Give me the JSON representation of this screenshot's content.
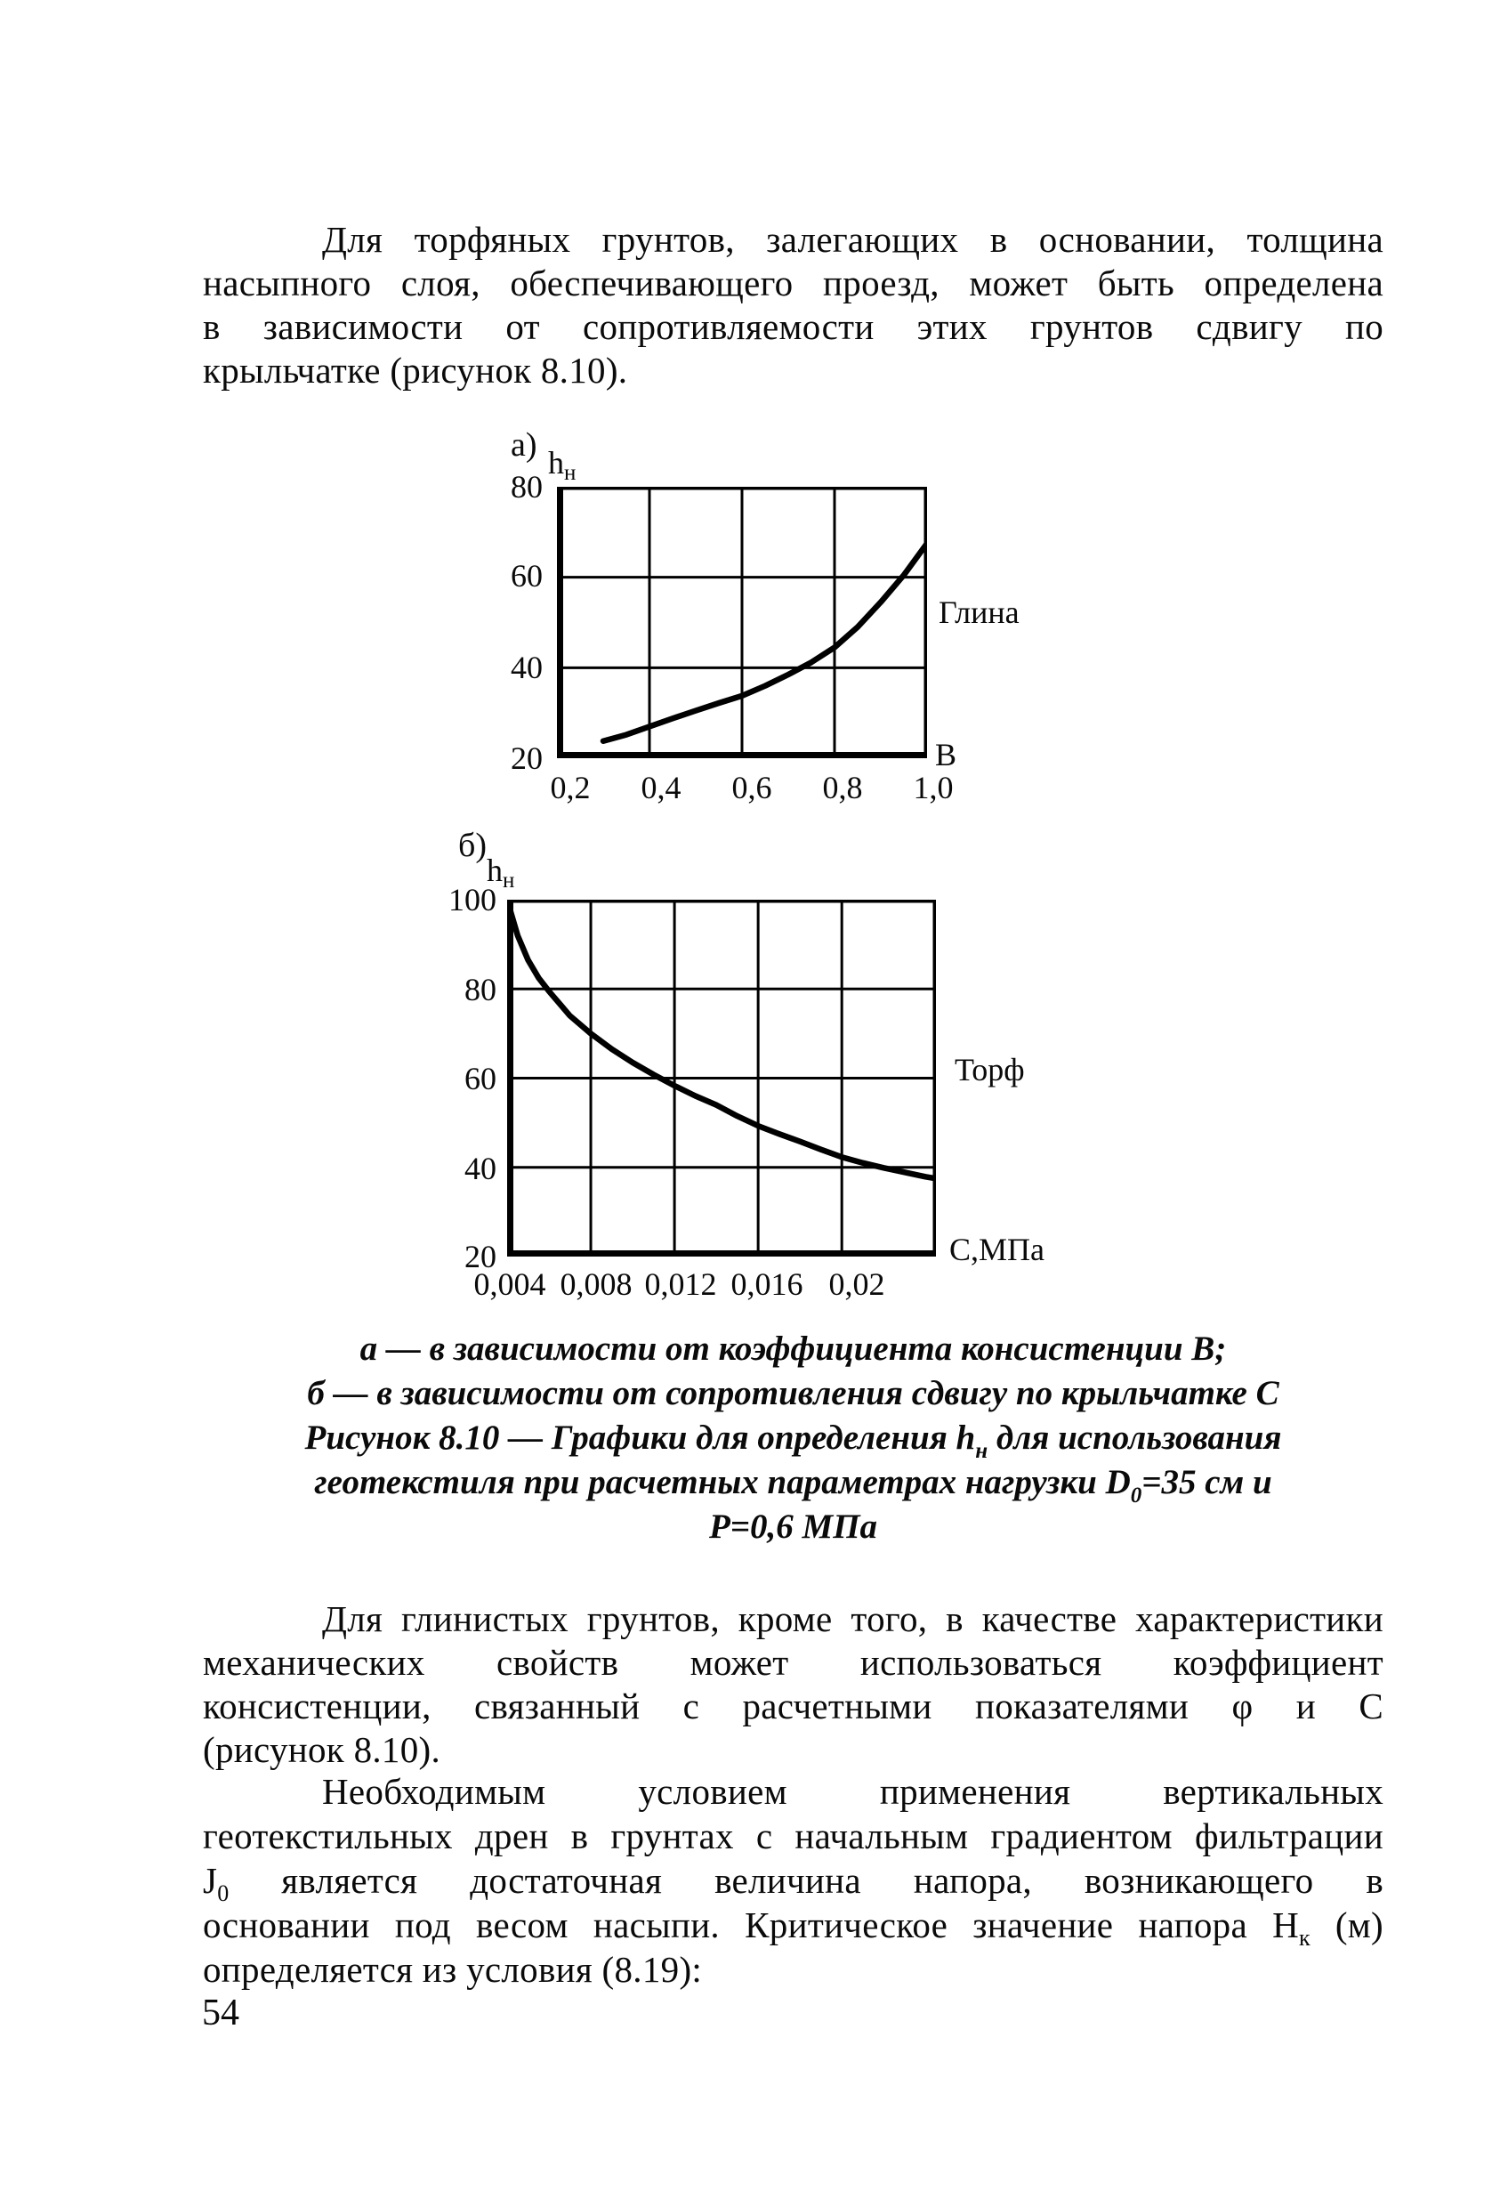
{
  "paragraphs": {
    "p1": {
      "line1": "Для торфяных грунтов, залегающих в основании, толщина",
      "line2": "насыпного слоя, обеспечивающего проезд, может быть определена",
      "line3": "в зависимости от сопротивляемости этих грунтов сдвигу по",
      "line4": "крыльчатке (рисунок 8.10)."
    },
    "p2": {
      "line1": "Для глинистых грунтов, кроме того, в качестве характеристики",
      "line2": "механических свойств может использоваться коэффициент",
      "line3": "консистенции, связанный с расчетными показателями φ и С",
      "line4": "(рисунок 8.10)."
    },
    "p3": {
      "line1": "Необходимым условием применения вертикальных",
      "line2": "геотекстильных дрен в грунтах с начальным градиентом фильтрации",
      "line3_pre": "J",
      "line3_sub": "0",
      "line3_post": " является достаточная величина напора, возникающего в",
      "line4_pre": "основании под весом насыпи. Критическое значение напора Н",
      "line4_sub": "к",
      "line4_post": " (м)",
      "line5": "определяется из условия (8.19):"
    }
  },
  "figure": {
    "chart_a": {
      "panel_label": "а)",
      "y_symbol": "h",
      "y_symbol_sub": "н",
      "x_axis_label": "В",
      "curve_label": "Глина",
      "y_ticks": [
        "80",
        "60",
        "40",
        "20"
      ],
      "x_ticks": [
        "0,2",
        "0,4",
        "0,6",
        "0,8",
        "1,0"
      ]
    },
    "chart_b": {
      "panel_label": "б)",
      "y_symbol": "h",
      "y_symbol_sub": "н",
      "x_axis_label": "С,МПа",
      "curve_label": "Торф",
      "y_ticks": [
        "100",
        "80",
        "60",
        "40",
        "20"
      ],
      "x_ticks": [
        "0,004",
        "0,008",
        "0,012",
        "0,016",
        "0,02"
      ]
    },
    "caption": {
      "line1": "а — в зависимости от коэффициента консистенции В;",
      "line2": "б — в зависимости от сопротивления сдвигу по крыльчатке С",
      "line3_pre": "Рисунок 8.10 — Графики для определения h",
      "line3_sub": "н",
      "line3_post": " для использования",
      "line4_pre": "геотекстиля при расчетных параметрах нагрузки D",
      "line4_sub": "0",
      "line4_post": "=35 см и",
      "line5": "Р=0,6 МПа"
    }
  },
  "page": {
    "number": "54"
  },
  "chart_data": [
    {
      "type": "line",
      "panel": "а",
      "ylabel": "hн",
      "xlabel": "В",
      "xlim": [
        0.2,
        1.0
      ],
      "ylim": [
        20,
        80
      ],
      "x_ticks": [
        0.2,
        0.4,
        0.6,
        0.8,
        1.0
      ],
      "y_ticks": [
        20,
        40,
        60,
        80
      ],
      "x_gridlines": [
        0.4,
        0.6,
        0.8
      ],
      "y_gridlines": [
        40,
        60
      ],
      "grid": true,
      "legend_position": "right-of-plot",
      "series": [
        {
          "name": "Глина",
          "x": [
            0.3,
            0.35,
            0.4,
            0.45,
            0.5,
            0.55,
            0.6,
            0.65,
            0.7,
            0.75,
            0.8,
            0.85,
            0.9,
            0.95,
            1.0
          ],
          "y": [
            23.8,
            25.2,
            27.0,
            28.8,
            30.5,
            32.2,
            33.8,
            36.0,
            38.5,
            41.2,
            44.5,
            49.0,
            54.5,
            60.5,
            67.5
          ]
        }
      ]
    },
    {
      "type": "line",
      "panel": "б",
      "ylabel": "hн",
      "xlabel": "С,МПа",
      "xlim": [
        0.004,
        0.0245
      ],
      "ylim": [
        20,
        100
      ],
      "x_ticks": [
        0.004,
        0.008,
        0.012,
        0.016,
        0.02
      ],
      "y_ticks": [
        20,
        40,
        60,
        80,
        100
      ],
      "x_gridlines": [
        0.008,
        0.012,
        0.016,
        0.02
      ],
      "y_gridlines": [
        40,
        60,
        80
      ],
      "grid": true,
      "legend_position": "right-of-plot",
      "series": [
        {
          "name": "Торф",
          "x": [
            0.004,
            0.0045,
            0.005,
            0.0055,
            0.006,
            0.007,
            0.008,
            0.009,
            0.01,
            0.011,
            0.012,
            0.013,
            0.014,
            0.015,
            0.016,
            0.017,
            0.018,
            0.019,
            0.02,
            0.021,
            0.022,
            0.023,
            0.024,
            0.0245
          ],
          "y": [
            100,
            92,
            86.5,
            82.5,
            79.5,
            74,
            70,
            66.5,
            63.5,
            60.8,
            58.3,
            56,
            54,
            51.5,
            49.3,
            47.5,
            45.8,
            44,
            42.3,
            41,
            39.9,
            38.9,
            37.9,
            37.5
          ]
        }
      ]
    }
  ]
}
